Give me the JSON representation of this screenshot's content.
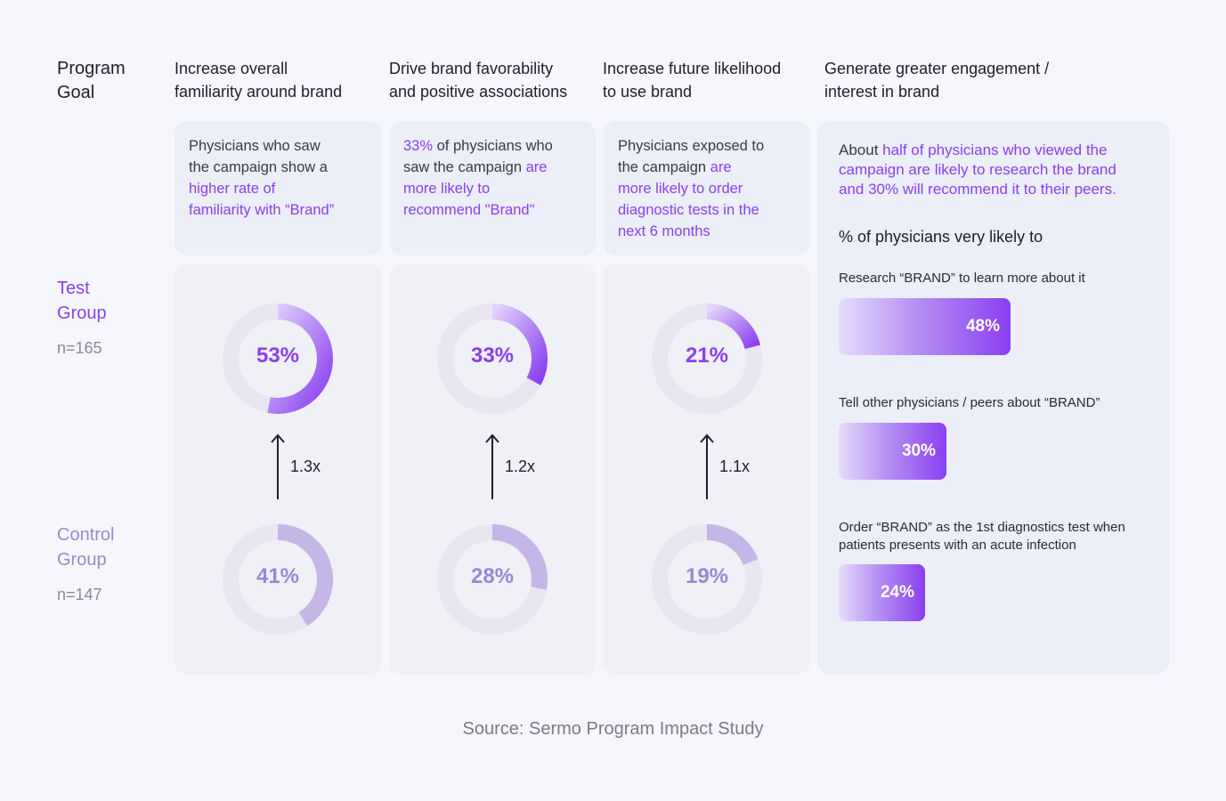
{
  "header": {
    "program_goal": "Program\nGoal",
    "goals": [
      "Increase overall\nfamiliarity around brand",
      "Drive brand favorability\nand positive associations",
      "Increase future likelihood\nto use brand",
      "Generate greater engagement /\ninterest in brand"
    ]
  },
  "descriptions": [
    {
      "parts": [
        {
          "t": "Physicians who saw\nthe campaign show a\n",
          "hl": false
        },
        {
          "t": "higher rate of\nfamiliarity with “Brand”",
          "hl": true
        }
      ]
    },
    {
      "parts": [
        {
          "t": "33%",
          "hl": true
        },
        {
          "t": " of physicians who\nsaw the campaign ",
          "hl": false
        },
        {
          "t": "are\nmore likely to\nrecommend \"Brand\"",
          "hl": true
        }
      ]
    },
    {
      "parts": [
        {
          "t": "Physicians exposed to\nthe campaign ",
          "hl": false
        },
        {
          "t": "are\nmore likely to order\ndiagnostic tests in the\nnext 6 months",
          "hl": true
        }
      ]
    }
  ],
  "engagement": {
    "summary_parts": [
      {
        "t": "About ",
        "hl": false
      },
      {
        "t": "half of physicians who viewed the\ncampaign are likely to research the brand\nand 30% will recommend it to their peers.",
        "hl": true
      }
    ],
    "subtitle": "% of physicians very likely to"
  },
  "groups": {
    "test": {
      "label": "Test\nGroup",
      "n": "n=165"
    },
    "control": {
      "label": "Control\nGroup",
      "n": "n=147"
    }
  },
  "colors": {
    "accent": "#8a3ff0",
    "accent_light": "#c9aef5",
    "control": "#c4b6e6",
    "track": "#e9e6f2"
  },
  "source": "Source: Sermo Program Impact Study",
  "chart_data": [
    {
      "type": "donut",
      "categories": [
        "Increase overall familiarity around brand",
        "Drive brand favorability and positive associations",
        "Increase future likelihood to use brand"
      ],
      "series": [
        {
          "name": "Test Group",
          "values": [
            53,
            33,
            21
          ],
          "labels": [
            "53%",
            "33%",
            "21%"
          ]
        },
        {
          "name": "Control Group",
          "values": [
            41,
            28,
            19
          ],
          "labels": [
            "41%",
            "28%",
            "19%"
          ]
        }
      ],
      "lift": [
        "1.3x",
        "1.2x",
        "1.1x"
      ]
    },
    {
      "type": "bar",
      "title": "% of physicians very likely to",
      "categories": [
        "Research “BRAND” to learn more about it",
        "Tell other physicians / peers about “BRAND”",
        "Order “BRAND” as the 1st diagnostics test when\npatients presents with an acute infection"
      ],
      "values": [
        48,
        30,
        24
      ],
      "labels": [
        "48%",
        "30%",
        "24%"
      ]
    }
  ]
}
